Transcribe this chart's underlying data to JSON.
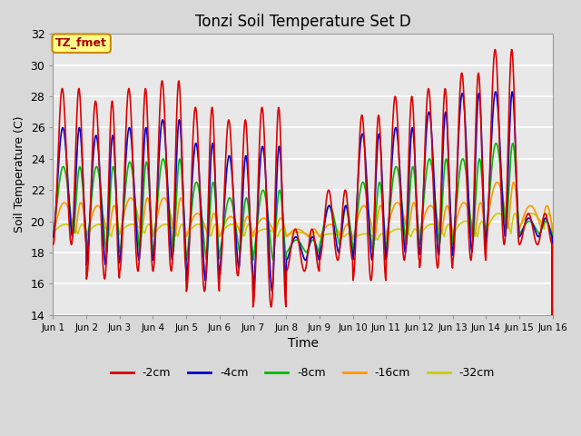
{
  "title": "Tonzi Soil Temperature Set D",
  "xlabel": "Time",
  "ylabel": "Soil Temperature (C)",
  "ylim": [
    14,
    32
  ],
  "xlim": [
    0,
    15
  ],
  "annotation": "TZ_fmet",
  "legend_labels": [
    "-2cm",
    "-4cm",
    "-8cm",
    "-16cm",
    "-32cm"
  ],
  "legend_colors": [
    "#dd0000",
    "#0000cc",
    "#00bb00",
    "#ff9900",
    "#cccc00"
  ],
  "xtick_labels": [
    "Jun 1",
    "Jun 2",
    "Jun 3",
    "Jun 4",
    "Jun 5",
    "Jun 6",
    "Jun 7",
    "Jun 8",
    "Jun 9",
    "Jun 10",
    "Jun 11",
    "Jun 12",
    "Jun 13",
    "Jun 14",
    "Jun 15",
    "Jun 16"
  ],
  "ytick_values": [
    14,
    16,
    18,
    20,
    22,
    24,
    26,
    28,
    30,
    32
  ],
  "plot_bg_color": "#e8e8e8",
  "fig_bg_color": "#d8d8d8",
  "annotation_bg": "#ffff88",
  "annotation_border": "#cc8800",
  "annotation_text_color": "#aa0000",
  "peaks_2cm": [
    28.5,
    27.7,
    28.5,
    29.0,
    27.3,
    26.5,
    27.3,
    19.5,
    22.0,
    26.8,
    28.0,
    28.5,
    29.5,
    31.0,
    20.5
  ],
  "troughs_2cm": [
    18.5,
    16.3,
    16.8,
    16.8,
    15.5,
    16.5,
    14.5,
    16.8,
    17.5,
    16.2,
    17.5,
    17.0,
    17.5,
    18.5,
    18.5
  ],
  "peaks_4cm": [
    26.0,
    25.5,
    26.0,
    26.5,
    25.0,
    24.2,
    24.8,
    19.0,
    21.0,
    25.6,
    26.0,
    27.0,
    28.2,
    28.3,
    20.2
  ],
  "troughs_4cm": [
    19.0,
    17.2,
    17.5,
    17.5,
    16.2,
    17.0,
    15.5,
    17.5,
    18.0,
    17.5,
    18.0,
    17.8,
    18.0,
    19.0,
    19.0
  ],
  "peaks_8cm": [
    23.5,
    23.5,
    23.8,
    24.0,
    22.5,
    21.5,
    22.0,
    18.8,
    21.0,
    22.5,
    23.5,
    24.0,
    24.0,
    25.0,
    20.0
  ],
  "troughs_8cm": [
    19.2,
    18.0,
    18.0,
    18.0,
    17.5,
    18.0,
    17.5,
    18.0,
    18.5,
    18.0,
    18.5,
    18.5,
    18.8,
    19.5,
    19.2
  ],
  "peaks_16cm": [
    21.2,
    21.0,
    21.5,
    21.5,
    20.5,
    20.3,
    20.2,
    19.5,
    19.8,
    21.0,
    21.2,
    21.0,
    21.2,
    22.5,
    21.0
  ],
  "troughs_16cm": [
    19.2,
    19.0,
    19.2,
    19.0,
    19.0,
    19.0,
    19.2,
    19.0,
    19.0,
    18.8,
    19.2,
    19.2,
    19.0,
    19.5,
    19.5
  ],
  "peaks_32cm": [
    19.8,
    19.8,
    19.8,
    19.8,
    19.8,
    19.8,
    19.5,
    19.3,
    19.2,
    19.2,
    19.5,
    19.8,
    20.0,
    20.5,
    20.5
  ],
  "troughs_32cm": [
    19.2,
    19.0,
    19.2,
    19.0,
    19.0,
    19.0,
    19.0,
    19.0,
    19.0,
    18.8,
    19.0,
    19.0,
    19.0,
    19.2,
    19.5
  ]
}
